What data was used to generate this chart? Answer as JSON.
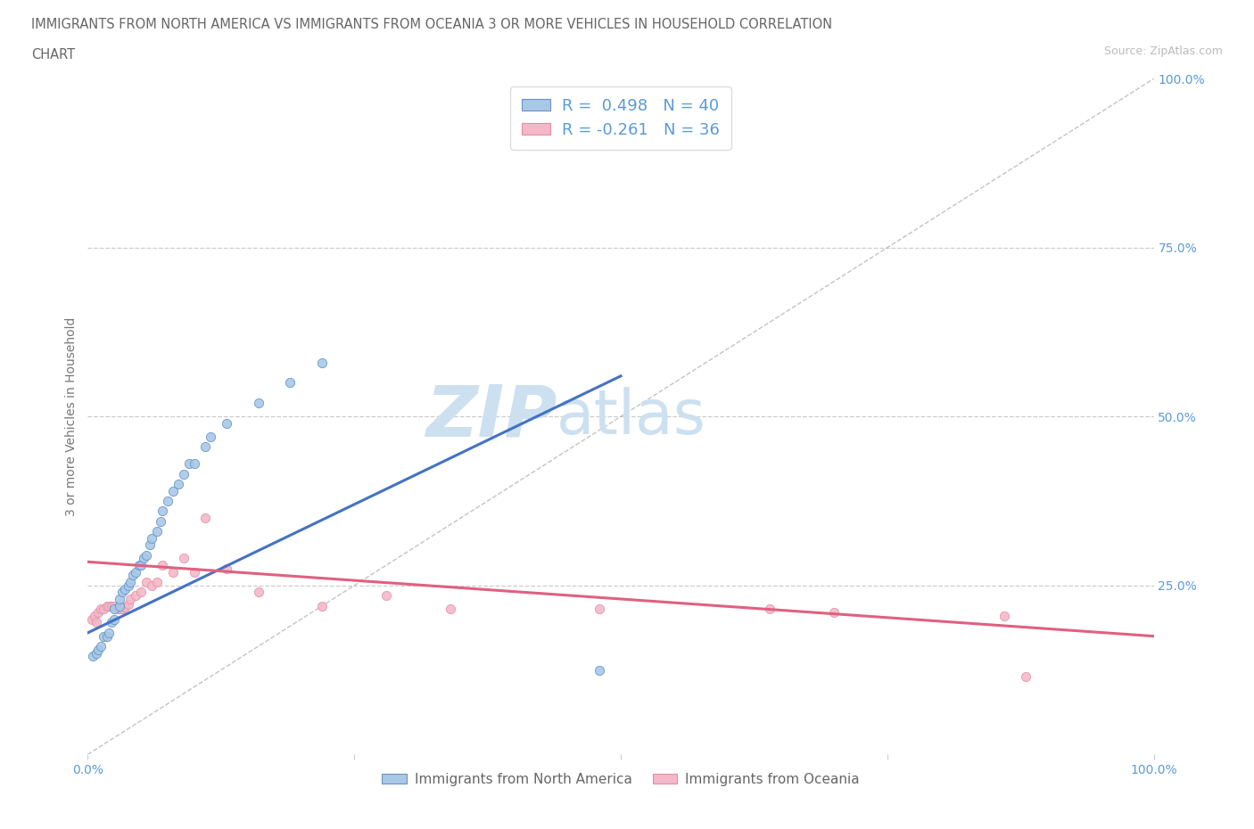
{
  "title_line1": "IMMIGRANTS FROM NORTH AMERICA VS IMMIGRANTS FROM OCEANIA 3 OR MORE VEHICLES IN HOUSEHOLD CORRELATION",
  "title_line2": "CHART",
  "source_text": "Source: ZipAtlas.com",
  "ylabel": "3 or more Vehicles in Household",
  "legend_label1": "Immigrants from North America",
  "legend_label2": "Immigrants from Oceania",
  "R1": 0.498,
  "N1": 40,
  "R2": -0.261,
  "N2": 36,
  "color_blue": "#a8c8e8",
  "color_pink": "#f4b8c8",
  "color_blue_line": "#4472c4",
  "color_pink_line": "#e06080",
  "watermark_color": "#cce0f0",
  "background_color": "#ffffff",
  "xmin": 0.0,
  "xmax": 1.0,
  "ymin": 0.0,
  "ymax": 1.0,
  "blue_scatter_x": [
    0.005,
    0.008,
    0.01,
    0.012,
    0.015,
    0.018,
    0.02,
    0.022,
    0.025,
    0.025,
    0.03,
    0.03,
    0.032,
    0.035,
    0.038,
    0.04,
    0.042,
    0.045,
    0.048,
    0.05,
    0.052,
    0.055,
    0.058,
    0.06,
    0.065,
    0.068,
    0.07,
    0.075,
    0.08,
    0.085,
    0.09,
    0.095,
    0.1,
    0.11,
    0.115,
    0.13,
    0.16,
    0.19,
    0.22,
    0.48
  ],
  "blue_scatter_y": [
    0.145,
    0.15,
    0.155,
    0.16,
    0.175,
    0.175,
    0.18,
    0.195,
    0.2,
    0.215,
    0.22,
    0.23,
    0.24,
    0.245,
    0.25,
    0.255,
    0.265,
    0.27,
    0.28,
    0.28,
    0.29,
    0.295,
    0.31,
    0.32,
    0.33,
    0.345,
    0.36,
    0.375,
    0.39,
    0.4,
    0.415,
    0.43,
    0.43,
    0.455,
    0.47,
    0.49,
    0.52,
    0.55,
    0.58,
    0.125
  ],
  "pink_scatter_x": [
    0.004,
    0.006,
    0.008,
    0.01,
    0.012,
    0.015,
    0.018,
    0.02,
    0.022,
    0.025,
    0.028,
    0.03,
    0.032,
    0.035,
    0.038,
    0.04,
    0.045,
    0.05,
    0.055,
    0.06,
    0.065,
    0.07,
    0.08,
    0.09,
    0.1,
    0.11,
    0.13,
    0.16,
    0.22,
    0.28,
    0.34,
    0.48,
    0.64,
    0.7,
    0.86,
    0.88
  ],
  "pink_scatter_y": [
    0.2,
    0.205,
    0.195,
    0.21,
    0.215,
    0.215,
    0.22,
    0.22,
    0.22,
    0.22,
    0.215,
    0.215,
    0.215,
    0.218,
    0.222,
    0.23,
    0.235,
    0.24,
    0.255,
    0.25,
    0.255,
    0.28,
    0.27,
    0.29,
    0.27,
    0.35,
    0.275,
    0.24,
    0.22,
    0.235,
    0.215,
    0.215,
    0.215,
    0.21,
    0.205,
    0.115
  ],
  "dashed_line_x": [
    0.0,
    1.0
  ],
  "dashed_line_y": [
    0.0,
    1.0
  ],
  "blue_trend_x": [
    0.0,
    0.5
  ],
  "blue_trend_y": [
    0.18,
    0.56
  ],
  "pink_trend_x": [
    0.0,
    1.0
  ],
  "pink_trend_y": [
    0.285,
    0.175
  ]
}
